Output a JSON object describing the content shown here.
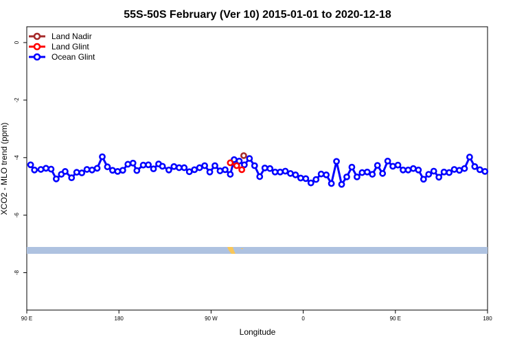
{
  "chart_data": {
    "type": "line",
    "title": "55S-50S February (Ver 10)   2015-01-01 to 2020-12-18",
    "xlabel": "Longitude",
    "ylabel": "XCO2 - MLO trend (ppm)",
    "xlim": [
      0,
      360
    ],
    "ylim": [
      -9.3,
      0.55
    ],
    "x_ticks": [
      {
        "value": 0,
        "label": "90 E"
      },
      {
        "value": 72,
        "label": "180"
      },
      {
        "value": 144,
        "label": "90 W"
      },
      {
        "value": 216,
        "label": "0"
      },
      {
        "value": 288,
        "label": "90 E"
      },
      {
        "value": 360,
        "label": "180"
      }
    ],
    "y_ticks": [
      0,
      -2,
      -4,
      -6,
      -8
    ],
    "grid": false,
    "legend_position": "top-left",
    "series": [
      {
        "name": "Land Nadir",
        "color": "#a52a2a",
        "x": [
          169.5
        ],
        "y": [
          -3.93
        ]
      },
      {
        "name": "Land Glint",
        "color": "#ff0000",
        "x": [
          159,
          164,
          168
        ],
        "y": [
          -4.18,
          -4.28,
          -4.42
        ]
      },
      {
        "name": "Ocean Glint",
        "color": "#0000ff",
        "x": [
          3,
          6,
          11,
          15,
          19,
          23,
          27,
          30,
          35,
          39,
          43,
          47,
          51,
          55,
          59,
          63,
          67,
          71,
          75,
          79,
          83,
          86,
          91,
          95,
          99,
          103,
          106,
          111,
          115,
          119,
          123,
          127,
          131,
          135,
          139,
          143,
          147,
          151,
          155,
          159,
          162,
          166,
          170,
          174,
          178,
          182,
          186,
          190,
          194,
          198,
          202,
          206,
          210,
          214,
          218,
          222,
          226,
          230,
          234,
          238,
          242,
          246,
          250,
          254,
          258,
          262,
          266,
          270,
          274,
          278,
          282,
          286,
          290,
          294,
          298,
          302,
          306,
          310,
          314,
          318,
          322,
          326,
          330,
          334,
          338,
          342,
          346,
          350,
          354,
          358
        ],
        "y": [
          -4.25,
          -4.43,
          -4.41,
          -4.37,
          -4.4,
          -4.74,
          -4.58,
          -4.48,
          -4.7,
          -4.51,
          -4.53,
          -4.41,
          -4.43,
          -4.37,
          -3.97,
          -4.32,
          -4.44,
          -4.48,
          -4.44,
          -4.23,
          -4.19,
          -4.45,
          -4.26,
          -4.25,
          -4.39,
          -4.22,
          -4.3,
          -4.43,
          -4.31,
          -4.35,
          -4.35,
          -4.49,
          -4.42,
          -4.35,
          -4.28,
          -4.5,
          -4.28,
          -4.46,
          -4.42,
          -4.58,
          -4.07,
          -4.12,
          -4.25,
          -4.03,
          -4.28,
          -4.66,
          -4.36,
          -4.38,
          -4.5,
          -4.5,
          -4.47,
          -4.55,
          -4.6,
          -4.71,
          -4.73,
          -4.88,
          -4.76,
          -4.57,
          -4.6,
          -4.9,
          -4.13,
          -4.93,
          -4.67,
          -4.33,
          -4.67,
          -4.52,
          -4.5,
          -4.58,
          -4.27,
          -4.55,
          -4.12,
          -4.3,
          -4.26,
          -4.43,
          -4.43,
          -4.38,
          -4.43,
          -4.75,
          -4.58,
          -4.47,
          -4.68,
          -4.5,
          -4.52,
          -4.41,
          -4.44,
          -4.38,
          -3.98,
          -4.31,
          -4.42,
          -4.48
        ]
      }
    ]
  }
}
